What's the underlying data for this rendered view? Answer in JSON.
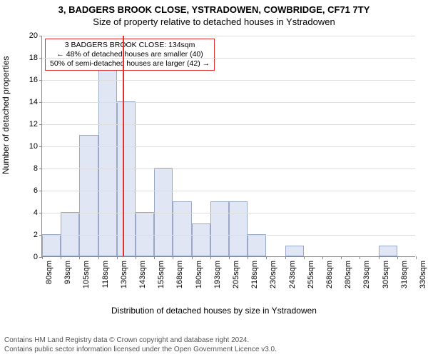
{
  "title": {
    "line1": "3, BADGERS BROOK CLOSE, YSTRADOWEN, COWBRIDGE, CF71 7TY",
    "line2": "Size of property relative to detached houses in Ystradowen",
    "fontsize": 13
  },
  "chart": {
    "type": "histogram",
    "ylabel": "Number of detached properties",
    "xlabel": "Distribution of detached houses by size in Ystradowen",
    "label_fontsize": 12,
    "tick_fontsize": 11,
    "ylim": [
      0,
      20
    ],
    "ytick_step": 2,
    "yticks": [
      0,
      2,
      4,
      6,
      8,
      10,
      12,
      14,
      16,
      18,
      20
    ],
    "xlim": [
      80,
      330
    ],
    "xtick_step": 12.5,
    "xtick_labels": [
      "80sqm",
      "93sqm",
      "105sqm",
      "118sqm",
      "130sqm",
      "143sqm",
      "155sqm",
      "168sqm",
      "180sqm",
      "193sqm",
      "205sqm",
      "218sqm",
      "230sqm",
      "243sqm",
      "255sqm",
      "268sqm",
      "280sqm",
      "293sqm",
      "305sqm",
      "318sqm",
      "330sqm"
    ],
    "bin_edges": [
      80,
      92.5,
      105,
      117.5,
      130,
      142.5,
      155,
      167.5,
      180,
      192.5,
      205,
      217.5,
      230,
      242.5,
      255,
      267.5,
      280,
      292.5,
      305,
      317.5,
      330
    ],
    "counts": [
      2,
      4,
      11,
      18,
      14,
      4,
      8,
      5,
      3,
      5,
      5,
      2,
      0,
      1,
      0,
      0,
      0,
      0,
      1,
      0
    ],
    "bar_fill": "#e0e6f4",
    "bar_border": "#9aa8c8",
    "background_color": "#ffffff",
    "grid_color": "#dddddd",
    "axis_color": "#888888",
    "marker_x": 134,
    "marker_color": "#e03030",
    "annotation": {
      "line1": "3 BADGERS BROOK CLOSE: 134sqm",
      "line2": "← 48% of detached houses are smaller (40)",
      "line3": "50% of semi-detached houses are larger (42) →",
      "border_color": "#e03030",
      "bg_color": "#ffffff",
      "fontsize": 10.5
    }
  },
  "footer": {
    "line1": "Contains HM Land Registry data © Crown copyright and database right 2024.",
    "line2": "Contains public sector information licensed under the Open Government Licence v3.0.",
    "fontsize": 10,
    "color": "#555555"
  }
}
